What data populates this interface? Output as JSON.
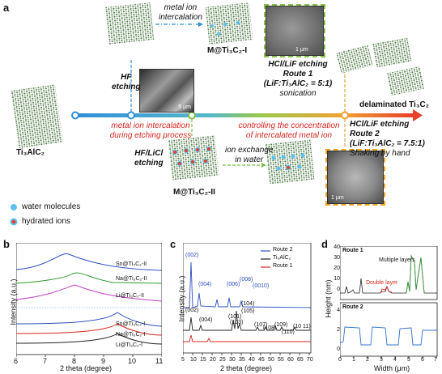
{
  "panel_a": {
    "letter": "a",
    "ti3alc2": "Ti₃AlC₂",
    "hf_etching": [
      "HF",
      "etching"
    ],
    "metal_intercalation": [
      "metal ion",
      "intercalation"
    ],
    "m_ti3c2_i": "M@Ti₃C₂-I",
    "route1": [
      "HCl/LiF etching",
      "Route 1",
      "(LiF:Ti₃AlC₂ = 5:1)",
      "sonication"
    ],
    "delaminated": "delaminated Ti₃C₂",
    "metal_during": [
      "metal ion intercalation",
      "during etching process"
    ],
    "controlling": [
      "controlling the concentration",
      "of intercalated metal ion"
    ],
    "route2": [
      "HCl/LiF etching",
      "Route 2",
      "(LiF:Ti₃AlC₂ = 7.5:1)",
      "Shaking by hand"
    ],
    "hf_licl": [
      "HF/LiCl",
      "etching"
    ],
    "ion_exchange": [
      "ion exchange",
      "in water"
    ],
    "m_ti3c2_ii": "M@Ti₃C₂-II",
    "legend": [
      "water molecules",
      "hydrated ions"
    ],
    "sem_scale": "5 μm",
    "sem_scale2": "1 μm",
    "sem_scale3": "1 μm"
  },
  "panel_b": {
    "letter": "b",
    "ylabel": "Intensity (a.u.)",
    "xlabel": "2 theta (degree)",
    "xticks": [
      "6",
      "7",
      "8",
      "9",
      "10",
      "11"
    ],
    "labels": [
      "Sn@Ti₃C₂-II",
      "Na@Ti₃C₂-II",
      "Li@Ti₃C₂-II",
      "Sn@Ti₃C₂-I",
      "Na@Ti₃C₂-I",
      "Li@Ti₃C₂-I"
    ]
  },
  "panel_c": {
    "letter": "c",
    "ylabel": "Intensity (a.u.)",
    "xlabel": "2 theta (degree)",
    "xticks": [
      "5",
      "10",
      "15",
      "20",
      "25",
      "30",
      "35",
      "40",
      "45",
      "50",
      "55",
      "60",
      "65",
      "70"
    ],
    "legend": [
      "Route 2",
      "Ti₃AlC₂",
      "Route 1"
    ],
    "blue_peaks": [
      "(002)",
      "(004)",
      "(006)",
      "(008)",
      "(0010)"
    ],
    "black_peaks": [
      "(002)",
      "(004)",
      "(101)",
      "(103)",
      "(104)",
      "(105)",
      "(107)",
      "(108)",
      "(109)",
      "(110)",
      "(10 11)"
    ]
  },
  "panel_d": {
    "letter": "d",
    "route1": "Route 1",
    "route2": "Route 2",
    "multiple": "Multiple layers",
    "double": "Double layer",
    "ylabel": "Height (nm)",
    "xlabel": "Width (μm)",
    "yticks_top": [
      "0",
      "10",
      "20",
      "30",
      "40"
    ],
    "yticks_bot": [
      "0",
      "2",
      "4"
    ],
    "xticks": [
      "0",
      "1",
      "2",
      "3",
      "4",
      "5",
      "6",
      "7"
    ]
  },
  "colors": {
    "arrow_blue": "#2f8fd8",
    "arrow_green": "#7bc043",
    "arrow_orange": "#f0a030",
    "arrow_red": "#e8402a",
    "xrd_blue": "#2e4fbf",
    "xrd_red": "#d7261e",
    "afm_green": "#3c9a3c",
    "afm_red": "#d7261e",
    "afm_blue": "#2f6fd0"
  }
}
